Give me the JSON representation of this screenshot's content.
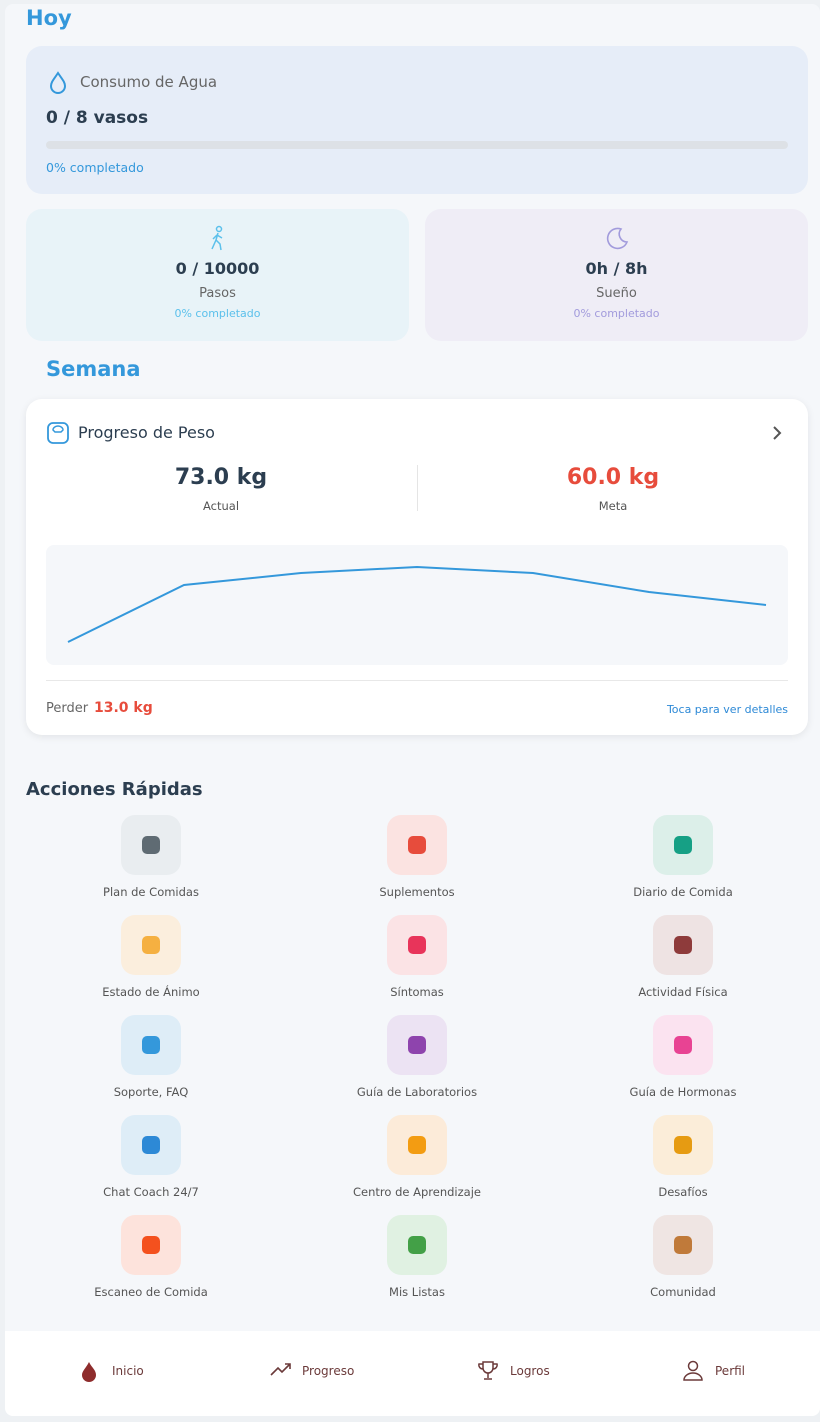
{
  "today": {
    "title": "Hoy",
    "water": {
      "label": "Consumo de Agua",
      "value": "0 / 8 vasos",
      "progress": "0% completado"
    },
    "steps": {
      "value": "0 / 10000",
      "label": "Pasos",
      "progress": "0% completado"
    },
    "sleep": {
      "value": "0h / 8h",
      "label": "Sueño",
      "progress": "0% completado"
    }
  },
  "week": {
    "title": "Semana",
    "weight": {
      "title": "Progreso de Peso",
      "current": "73.0 kg",
      "current_label": "Actual",
      "goal": "60.0 kg",
      "goal_label": "Meta",
      "lose_label": "Perder",
      "lose_value": "13.0 kg",
      "details": "Toca para ver detalles"
    }
  },
  "quick_actions": {
    "title": "Acciones Rápidas",
    "items": [
      {
        "label": "Plan de Comidas",
        "background": "#e9edf0",
        "color": "#5f6b73"
      },
      {
        "label": "Suplementos",
        "background": "#fbe3e1",
        "color": "#e74c3c"
      },
      {
        "label": "Diario de Comida",
        "background": "#dcefe9",
        "color": "#16a085"
      },
      {
        "label": "Estado de Ánimo",
        "background": "#fbeedd",
        "color": "#f5b041"
      },
      {
        "label": "Síntomas",
        "background": "#fbe3e5",
        "color": "#e8345a"
      },
      {
        "label": "Actividad Física",
        "background": "#eee3e3",
        "color": "#8e3b3b"
      },
      {
        "label": "Soporte, FAQ",
        "background": "#deedf7",
        "color": "#3498db"
      },
      {
        "label": "Guía de Laboratorios",
        "background": "#ece3f3",
        "color": "#8e44ad"
      },
      {
        "label": "Guía de Hormonas",
        "background": "#fbe3f0",
        "color": "#e84393"
      },
      {
        "label": "Chat Coach 24/7",
        "background": "#deedf7",
        "color": "#2d89d6"
      },
      {
        "label": "Centro de Aprendizaje",
        "background": "#fcebd9",
        "color": "#f39c12"
      },
      {
        "label": "Desafíos",
        "background": "#fbedd9",
        "color": "#e69b12"
      },
      {
        "label": "Escaneo de Comida",
        "background": "#fde3dc",
        "color": "#f4511e"
      },
      {
        "label": "Mis Listas",
        "background": "#e0f1e2",
        "color": "#43a047"
      },
      {
        "label": "Comunidad",
        "background": "#efe5e3",
        "color": "#c07a3a"
      }
    ]
  },
  "nav": {
    "items": [
      "Inicio",
      "Progreso",
      "Logros",
      "Perfil"
    ]
  }
}
